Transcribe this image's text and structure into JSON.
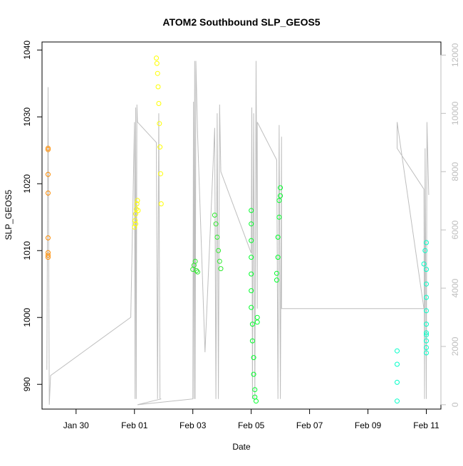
{
  "chart_data": {
    "type": "scatter",
    "title": "ATOM2 Southbound SLP_GEOS5",
    "xlabel": "Date",
    "ylabel": "SLP_GEOS5",
    "x_ticks": [
      "Jan 30",
      "Feb 01",
      "Feb 03",
      "Feb 05",
      "Feb 07",
      "Feb 09",
      "Feb 11"
    ],
    "y_ticks": [
      990,
      1000,
      1010,
      1020,
      1030,
      1040
    ],
    "y2_ticks": [
      0,
      2000,
      4000,
      6000,
      8000,
      10000,
      12000
    ],
    "xlim": [
      "2016-01-28 20:00",
      "2016-02-11 12:00"
    ],
    "ylim": [
      986.3,
      1041.2
    ],
    "y2lim": [
      -150,
      12450
    ],
    "grid": false,
    "legend": "none",
    "secondary_axis_color": "#bebebe",
    "altitude_line_color": "#bebebe",
    "series": [
      {
        "color": "#ff8c00",
        "points": [
          [
            "2016-01-29 01:00",
            1025.3
          ],
          [
            "2016-01-29 01:00",
            1025.1
          ],
          [
            "2016-01-29 01:00",
            1021.4
          ],
          [
            "2016-01-29 01:00",
            1018.6
          ],
          [
            "2016-01-29 01:00",
            1011.9
          ],
          [
            "2016-01-29 01:00",
            1009.7
          ],
          [
            "2016-01-29 01:00",
            1009.3
          ],
          [
            "2016-01-29 01:00",
            1009.0
          ]
        ]
      },
      {
        "color": "#ffff00",
        "points": [
          [
            "2016-02-01 00:00",
            1013.5
          ],
          [
            "2016-02-01 00:30",
            1014.5
          ],
          [
            "2016-02-01 01:00",
            1015.5
          ],
          [
            "2016-02-01 01:30",
            1016.2
          ],
          [
            "2016-02-01 02:00",
            1017.0
          ],
          [
            "2016-02-01 02:30",
            1017.5
          ],
          [
            "2016-02-01 03:00",
            1016.0
          ],
          [
            "2016-02-01 01:00",
            1014.0
          ],
          [
            "2016-02-01 18:00",
            1038.8
          ],
          [
            "2016-02-01 18:30",
            1038.0
          ],
          [
            "2016-02-01 19:00",
            1036.5
          ],
          [
            "2016-02-01 19:30",
            1034.5
          ],
          [
            "2016-02-01 20:00",
            1032.0
          ],
          [
            "2016-02-01 20:30",
            1029.0
          ],
          [
            "2016-02-01 21:00",
            1025.5
          ],
          [
            "2016-02-01 21:30",
            1021.5
          ],
          [
            "2016-02-01 22:00",
            1017.0
          ]
        ]
      },
      {
        "color": "#2ee82e",
        "points": [
          [
            "2016-02-03 00:00",
            1007.2
          ],
          [
            "2016-02-03 01:00",
            1007.8
          ],
          [
            "2016-02-03 02:00",
            1008.4
          ],
          [
            "2016-02-03 03:00",
            1007.0
          ],
          [
            "2016-02-03 04:00",
            1006.8
          ],
          [
            "2016-02-03 18:00",
            1015.3
          ],
          [
            "2016-02-03 19:00",
            1014.0
          ],
          [
            "2016-02-03 20:00",
            1012.0
          ],
          [
            "2016-02-03 21:00",
            1010.0
          ],
          [
            "2016-02-03 22:00",
            1008.4
          ],
          [
            "2016-02-03 23:00",
            1007.3
          ]
        ]
      },
      {
        "color": "#00ff2a",
        "points": [
          [
            "2016-02-05 00:00",
            1016.0
          ],
          [
            "2016-02-05 00:00",
            1014.0
          ],
          [
            "2016-02-05 00:00",
            1011.5
          ],
          [
            "2016-02-05 00:00",
            1009.0
          ],
          [
            "2016-02-05 00:00",
            1006.5
          ],
          [
            "2016-02-05 00:00",
            1004.0
          ],
          [
            "2016-02-05 00:00",
            1001.5
          ],
          [
            "2016-02-05 01:00",
            999.0
          ],
          [
            "2016-02-05 01:00",
            996.5
          ],
          [
            "2016-02-05 02:00",
            994.0
          ],
          [
            "2016-02-05 02:00",
            991.5
          ],
          [
            "2016-02-05 03:00",
            989.2
          ],
          [
            "2016-02-05 03:00",
            988.1
          ],
          [
            "2016-02-05 04:00",
            987.5
          ],
          [
            "2016-02-05 05:00",
            1000.0
          ],
          [
            "2016-02-05 05:00",
            999.3
          ],
          [
            "2016-02-05 21:00",
            1006.6
          ],
          [
            "2016-02-05 21:00",
            1005.6
          ],
          [
            "2016-02-05 22:00",
            1009.0
          ],
          [
            "2016-02-05 22:00",
            1012.0
          ],
          [
            "2016-02-05 23:00",
            1015.0
          ],
          [
            "2016-02-05 23:00",
            1017.5
          ],
          [
            "2016-02-06 00:00",
            1019.4
          ],
          [
            "2016-02-06 00:00",
            1018.2
          ]
        ]
      },
      {
        "color": "#00ffc8",
        "points": [
          [
            "2016-02-10 00:00",
            995.0
          ],
          [
            "2016-02-10 00:00",
            993.0
          ],
          [
            "2016-02-10 00:00",
            990.3
          ],
          [
            "2016-02-10 00:00",
            987.5
          ],
          [
            "2016-02-10 22:00",
            1008.0
          ],
          [
            "2016-02-10 23:00",
            1010.0
          ],
          [
            "2016-02-11 00:00",
            1011.2
          ],
          [
            "2016-02-11 00:00",
            1007.2
          ],
          [
            "2016-02-11 00:00",
            1005.0
          ],
          [
            "2016-02-11 00:00",
            1003.0
          ],
          [
            "2016-02-11 00:00",
            1001.0
          ],
          [
            "2016-02-11 00:00",
            999.0
          ],
          [
            "2016-02-11 00:00",
            997.4
          ],
          [
            "2016-02-11 00:00",
            996.5
          ],
          [
            "2016-02-11 00:00",
            995.5
          ],
          [
            "2016-02-11 00:00",
            994.7
          ],
          [
            "2016-02-11 00:00",
            997.7
          ]
        ]
      }
    ],
    "altitude_line": [
      [
        "2016-01-29 00:00",
        1200
      ],
      [
        "2016-01-29 01:00",
        10900
      ],
      [
        "2016-01-29 02:00",
        0
      ],
      [
        "2016-01-29 03:00",
        1000
      ],
      [
        "2016-01-31 21:00",
        3000
      ],
      [
        "2016-02-01 00:00",
        9700
      ],
      [
        "2016-02-01 00:30",
        200
      ],
      [
        "2016-02-01 01:00",
        10200
      ],
      [
        "2016-02-01 01:30",
        200
      ],
      [
        "2016-02-01 02:00",
        10300
      ],
      [
        "2016-02-01 02:30",
        9700
      ],
      [
        "2016-02-01 18:00",
        9000
      ],
      [
        "2016-02-01 19:00",
        200
      ],
      [
        "2016-02-01 20:00",
        10000
      ],
      [
        "2016-02-01 21:00",
        200
      ],
      [
        "2016-02-01 22:00",
        200
      ],
      [
        "2016-02-01 02:30",
        0
      ],
      [
        "2016-02-03 00:00",
        200
      ],
      [
        "2016-02-03 00:30",
        10400
      ],
      [
        "2016-02-03 01:00",
        200
      ],
      [
        "2016-02-03 01:30",
        11800
      ],
      [
        "2016-02-03 02:00",
        200
      ],
      [
        "2016-02-03 02:30",
        11800
      ],
      [
        "2016-02-03 04:00",
        9200
      ],
      [
        "2016-02-03 10:00",
        1800
      ],
      [
        "2016-02-03 18:00",
        9500
      ],
      [
        "2016-02-03 19:00",
        200
      ],
      [
        "2016-02-03 20:00",
        10000
      ],
      [
        "2016-02-03 21:00",
        200
      ],
      [
        "2016-02-03 22:00",
        10300
      ],
      [
        "2016-02-03 23:00",
        8000
      ],
      [
        "2016-02-05 00:00",
        5200
      ],
      [
        "2016-02-05 00:30",
        10200
      ],
      [
        "2016-02-05 01:00",
        200
      ],
      [
        "2016-02-05 02:00",
        10000
      ],
      [
        "2016-02-05 03:00",
        200
      ],
      [
        "2016-02-05 04:00",
        11800
      ],
      [
        "2016-02-05 05:00",
        3300
      ],
      [
        "2016-02-05 05:00",
        9700
      ],
      [
        "2016-02-05 21:00",
        8400
      ],
      [
        "2016-02-05 22:00",
        200
      ],
      [
        "2016-02-05 23:00",
        9600
      ],
      [
        "2016-02-06 00:00",
        200
      ],
      [
        "2016-02-06 01:00",
        9200
      ],
      [
        "2016-02-06 01:00",
        3300
      ],
      [
        "2016-02-10 22:00",
        3300
      ],
      [
        "2016-02-10 00:00",
        9700
      ],
      [
        "2016-02-10 00:00",
        8800
      ],
      [
        "2016-02-10 22:00",
        7400
      ],
      [
        "2016-02-10 22:30",
        200
      ],
      [
        "2016-02-10 23:00",
        8800
      ],
      [
        "2016-02-11 00:00",
        200
      ],
      [
        "2016-02-11 00:30",
        9700
      ],
      [
        "2016-02-11 02:00",
        7200
      ]
    ]
  }
}
